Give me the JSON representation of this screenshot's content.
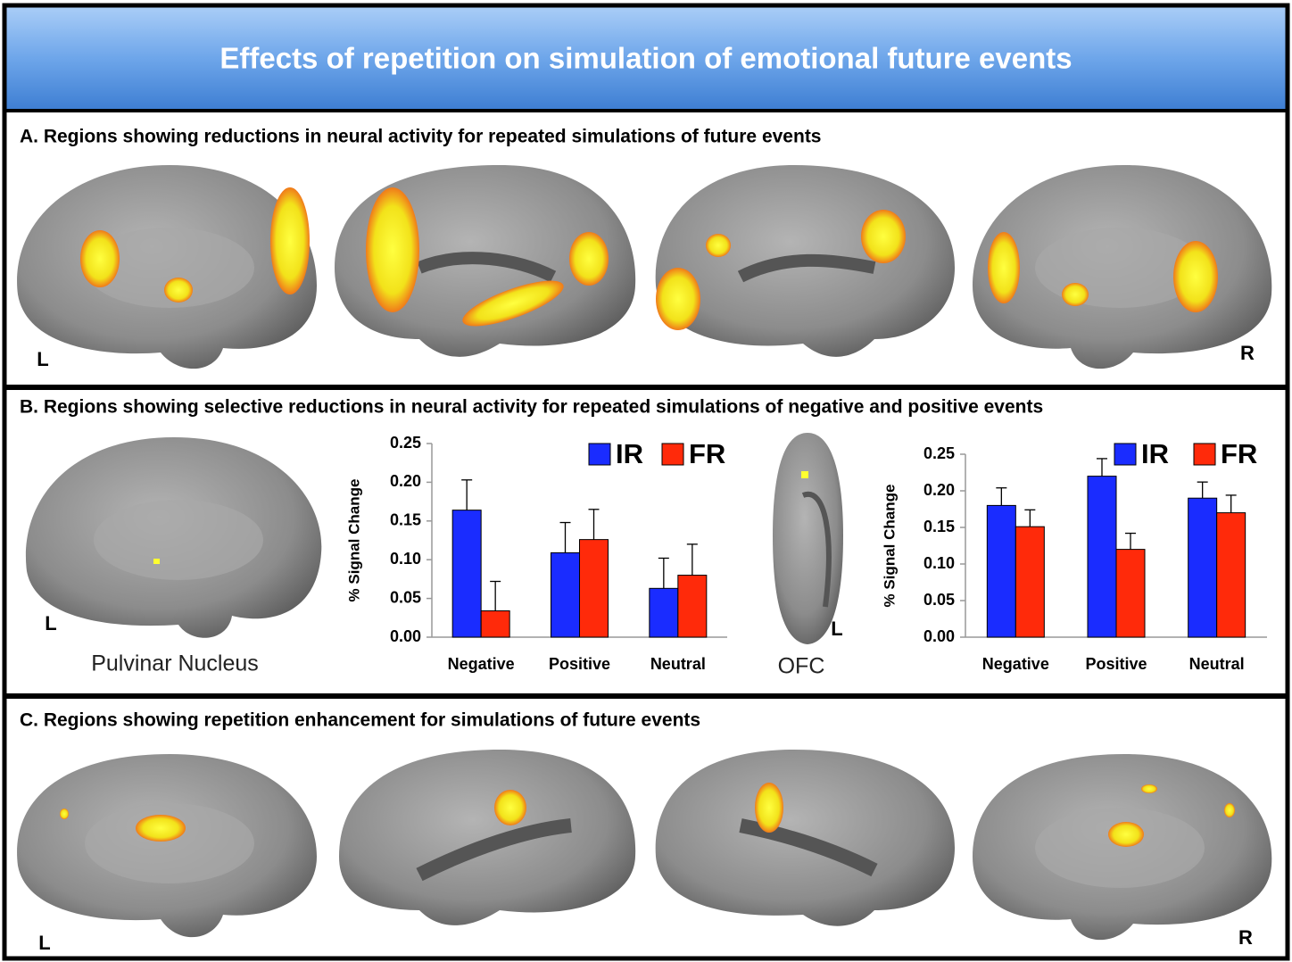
{
  "title": "Effects of repetition on simulation of emotional future events",
  "panels": [
    {
      "label": "A. Regions showing reductions in neural activity for repeated simulations of future events",
      "side_labels": [
        "L",
        "R"
      ]
    },
    {
      "label": "B. Regions showing selective reductions in neural activity for repeated simulations of negative and positive events",
      "side_labels": [
        "L",
        "L"
      ],
      "captions": [
        "Pulvinar Nucleus",
        "OFC"
      ]
    },
    {
      "label": "C. Regions showing repetition enhancement for simulations of future events",
      "side_labels": [
        "L",
        "R"
      ]
    }
  ],
  "chart_data": [
    {
      "type": "bar",
      "y_label": "% Signal Change",
      "categories": [
        "Negative",
        "Positive",
        "Neutral"
      ],
      "series": [
        {
          "name": "IR",
          "color": "#1a2cff",
          "values": [
            0.164,
            0.109,
            0.063
          ],
          "errors": [
            0.039,
            0.039,
            0.039
          ]
        },
        {
          "name": "FR",
          "color": "#ff2a0a",
          "values": [
            0.034,
            0.126,
            0.08
          ],
          "errors": [
            0.038,
            0.039,
            0.04
          ]
        }
      ],
      "ylim": [
        0,
        0.25
      ],
      "yticks": [
        {
          "value": 0,
          "label": "0.00"
        },
        0.05,
        {
          "value": 0.1,
          "label": "0.10"
        },
        0.15,
        {
          "value": 0.2,
          "label": "0.20"
        },
        0.25
      ],
      "grid": false
    },
    {
      "type": "bar",
      "y_label": "% Signal Change",
      "categories": [
        "Negative",
        "Positive",
        "Neutral"
      ],
      "series": [
        {
          "name": "IR",
          "color": "#1a2cff",
          "values": [
            0.18,
            0.22,
            0.19
          ],
          "errors": [
            0.024,
            0.024,
            0.022
          ]
        },
        {
          "name": "FR",
          "color": "#ff2a0a",
          "values": [
            0.151,
            0.12,
            0.17
          ],
          "errors": [
            0.023,
            0.022,
            0.024
          ]
        }
      ],
      "ylim": [
        0,
        0.25
      ],
      "yticks": [
        {
          "value": 0,
          "label": "0.00"
        },
        0.05,
        {
          "value": 0.1,
          "label": "0.10"
        },
        0.15,
        {
          "value": 0.2,
          "label": "0.20"
        },
        0.25
      ],
      "grid": false
    }
  ]
}
